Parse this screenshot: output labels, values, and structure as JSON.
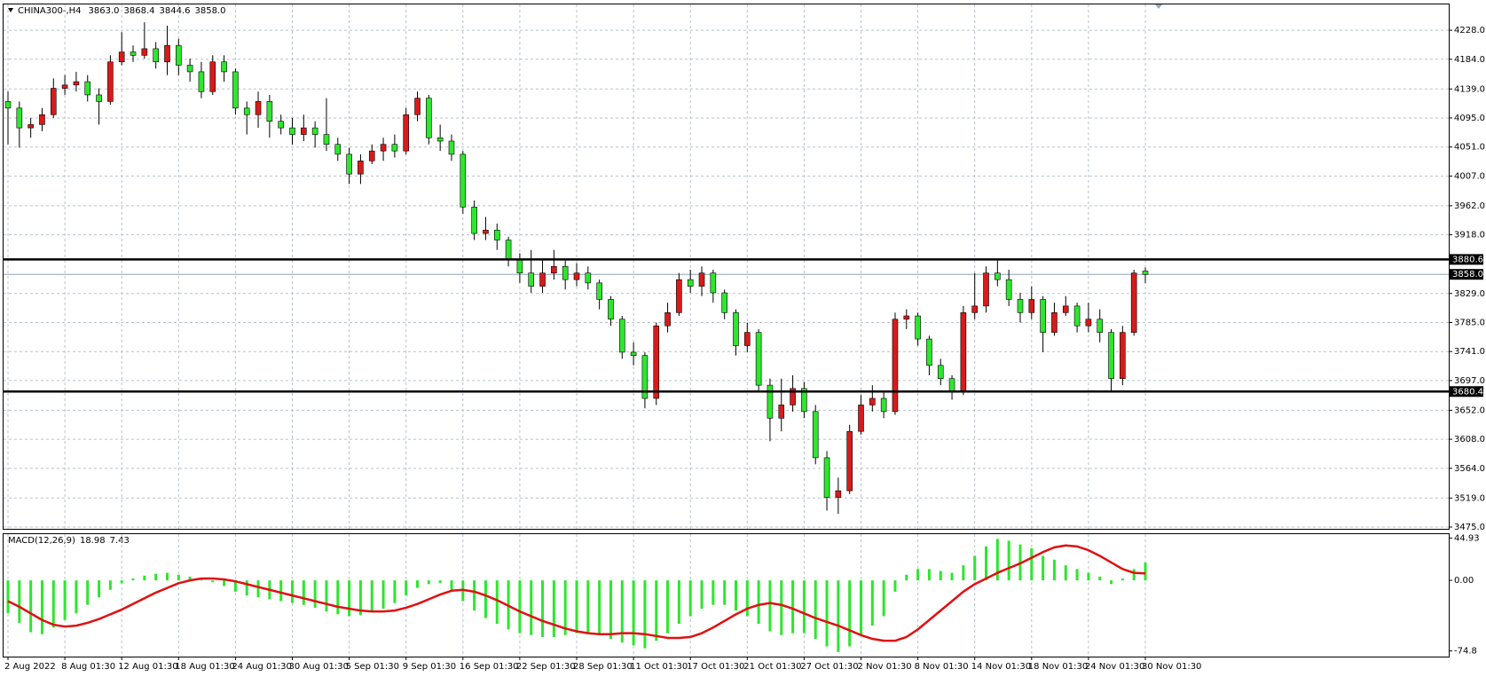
{
  "chart_data": [
    {
      "type": "candlestick",
      "title": "CHINA300-,H4",
      "header_values": [
        "3863.0",
        "3868.4",
        "3844.6",
        "3858.0"
      ],
      "open": [
        4120,
        4110,
        4080,
        4085,
        4100,
        4140,
        4145,
        4150,
        4130,
        4120,
        4180,
        4195,
        4190,
        4200,
        4180,
        4205,
        4175,
        4165,
        4135,
        4180,
        4165,
        4110,
        4100,
        4120,
        4090,
        4080,
        4070,
        4080,
        4070,
        4055,
        4040,
        4010,
        4030,
        4045,
        4055,
        4045,
        4100,
        4125,
        4065,
        4060,
        4040,
        3960,
        3920,
        3925,
        3910,
        3880,
        3860,
        3840,
        3860,
        3870,
        3850,
        3860,
        3845,
        3820,
        3790,
        3740,
        3735,
        3670,
        3780,
        3800,
        3850,
        3840,
        3860,
        3830,
        3800,
        3750,
        3770,
        3690,
        3640,
        3660,
        3685,
        3650,
        3580,
        3520,
        3530,
        3620,
        3660,
        3670,
        3650,
        3790,
        3795,
        3760,
        3720,
        3700,
        3680,
        3800,
        3810,
        3860,
        3850,
        3820,
        3800,
        3820,
        3770,
        3800,
        3810,
        3780,
        3790,
        3770,
        3700,
        3770,
        3863
      ],
      "high": [
        4135,
        4120,
        4095,
        4110,
        4155,
        4160,
        4165,
        4160,
        4140,
        4190,
        4225,
        4205,
        4240,
        4210,
        4235,
        4215,
        4185,
        4180,
        4190,
        4190,
        4170,
        4120,
        4135,
        4130,
        4100,
        4095,
        4100,
        4090,
        4125,
        4065,
        4050,
        4040,
        4055,
        4065,
        4070,
        4110,
        4135,
        4130,
        4085,
        4070,
        4045,
        3970,
        3945,
        3935,
        3915,
        3890,
        3895,
        3880,
        3895,
        3880,
        3875,
        3870,
        3850,
        3825,
        3795,
        3755,
        3740,
        3785,
        3815,
        3860,
        3865,
        3870,
        3865,
        3835,
        3805,
        3785,
        3775,
        3700,
        3700,
        3705,
        3695,
        3660,
        3590,
        3550,
        3630,
        3675,
        3690,
        3680,
        3800,
        3805,
        3800,
        3765,
        3730,
        3705,
        3810,
        3860,
        3870,
        3880,
        3865,
        3830,
        3840,
        3825,
        3815,
        3825,
        3815,
        3815,
        3805,
        3775,
        3780,
        3865,
        3868.4
      ],
      "low": [
        4055,
        4050,
        4065,
        4075,
        4095,
        4130,
        4135,
        4120,
        4085,
        4115,
        4175,
        4180,
        4185,
        4170,
        4160,
        4160,
        4150,
        4125,
        4130,
        4150,
        4100,
        4070,
        4080,
        4065,
        4070,
        4055,
        4060,
        4050,
        4045,
        4030,
        3995,
        3995,
        4025,
        4030,
        4035,
        4040,
        4090,
        4055,
        4045,
        4030,
        3950,
        3910,
        3910,
        3895,
        3870,
        3845,
        3830,
        3830,
        3850,
        3835,
        3840,
        3835,
        3805,
        3780,
        3730,
        3720,
        3655,
        3660,
        3770,
        3795,
        3830,
        3825,
        3815,
        3790,
        3735,
        3740,
        3680,
        3605,
        3620,
        3650,
        3640,
        3570,
        3500,
        3495,
        3525,
        3615,
        3650,
        3640,
        3645,
        3775,
        3750,
        3705,
        3690,
        3668,
        3675,
        3790,
        3800,
        3840,
        3810,
        3785,
        3790,
        3740,
        3765,
        3795,
        3770,
        3770,
        3755,
        3680,
        3690,
        3765,
        3844.6
      ],
      "close": [
        4110,
        4080,
        4085,
        4100,
        4140,
        4145,
        4150,
        4130,
        4120,
        4180,
        4195,
        4190,
        4200,
        4180,
        4205,
        4175,
        4165,
        4135,
        4180,
        4165,
        4110,
        4100,
        4120,
        4090,
        4080,
        4070,
        4080,
        4070,
        4055,
        4040,
        4010,
        4030,
        4045,
        4055,
        4045,
        4100,
        4125,
        4065,
        4060,
        4040,
        3960,
        3920,
        3925,
        3910,
        3880,
        3860,
        3840,
        3860,
        3870,
        3850,
        3860,
        3845,
        3820,
        3790,
        3740,
        3735,
        3670,
        3780,
        3800,
        3850,
        3840,
        3860,
        3830,
        3800,
        3750,
        3770,
        3690,
        3640,
        3660,
        3685,
        3650,
        3580,
        3520,
        3530,
        3620,
        3660,
        3670,
        3650,
        3790,
        3795,
        3760,
        3720,
        3700,
        3680,
        3800,
        3810,
        3860,
        3850,
        3820,
        3800,
        3820,
        3770,
        3800,
        3810,
        3780,
        3790,
        3770,
        3700,
        3770,
        3860,
        3858
      ],
      "up_color": "#d91a1a",
      "down_color": "#2ee62e",
      "ylim": [
        3472.3,
        4267.1
      ],
      "yticks": [
        {
          "value": 4228,
          "label": "4228.0"
        },
        {
          "value": 4184,
          "label": "4184.0"
        },
        {
          "value": 4139,
          "label": "4139.0"
        },
        {
          "value": 4095,
          "label": "4095.0"
        },
        {
          "value": 4051,
          "label": "4051.0"
        },
        {
          "value": 4007,
          "label": "4007.0"
        },
        {
          "value": 3962,
          "label": "3962.0"
        },
        {
          "value": 3918,
          "label": "3918.0"
        },
        {
          "value": 3829,
          "label": "3829.0"
        },
        {
          "value": 3785,
          "label": "3785.0"
        },
        {
          "value": 3741,
          "label": "3741.0"
        },
        {
          "value": 3697,
          "label": "3697.0"
        },
        {
          "value": 3652,
          "label": "3652.0"
        },
        {
          "value": 3608,
          "label": "3608.0"
        },
        {
          "value": 3564,
          "label": "3564.0"
        },
        {
          "value": 3519,
          "label": "3519.0"
        },
        {
          "value": 3475,
          "label": "3475.0"
        }
      ],
      "levels": [
        3880.6,
        3680.4
      ],
      "bid": {
        "value": 3858,
        "label": "3858.0"
      },
      "grid": true,
      "xticks": [
        {
          "value": 0,
          "label": "2 Aug 2022"
        },
        {
          "value": 5,
          "label": "8 Aug 01:30"
        },
        {
          "value": 10,
          "label": "12 Aug 01:30"
        },
        {
          "value": 15,
          "label": "18 Aug 01:30"
        },
        {
          "value": 20,
          "label": "24 Aug 01:30"
        },
        {
          "value": 25,
          "label": "30 Aug 01:30"
        },
        {
          "value": 30,
          "label": "5 Sep 01:30"
        },
        {
          "value": 35,
          "label": "9 Sep 01:30"
        },
        {
          "value": 40,
          "label": "16 Sep 01:30"
        },
        {
          "value": 45,
          "label": "22 Sep 01:30"
        },
        {
          "value": 50,
          "label": "28 Sep 01:30"
        },
        {
          "value": 55,
          "label": "11 Oct 01:30"
        },
        {
          "value": 60,
          "label": "17 Oct 01:30"
        },
        {
          "value": 65,
          "label": "21 Oct 01:30"
        },
        {
          "value": 70,
          "label": "27 Oct 01:30"
        },
        {
          "value": 75,
          "label": "2 Nov 01:30"
        },
        {
          "value": 80,
          "label": "8 Nov 01:30"
        },
        {
          "value": 85,
          "label": "14 Nov 01:30"
        },
        {
          "value": 90,
          "label": "18 Nov 01:30"
        },
        {
          "value": 95,
          "label": "24 Nov 01:30"
        },
        {
          "value": 100,
          "label": "30 Nov 01:30"
        }
      ]
    },
    {
      "type": "macd",
      "title": "MACD(12,26,9)",
      "histogram": {
        "color": "#2ee62e",
        "values": [
          -35,
          -45,
          -55,
          -57,
          -50,
          -42,
          -35,
          -26,
          -18,
          -10,
          -3,
          2,
          5,
          7,
          8,
          6,
          4,
          1,
          -2,
          -6,
          -12,
          -16,
          -18,
          -20,
          -22,
          -24,
          -26,
          -29,
          -33,
          -36,
          -38,
          -37,
          -34,
          -30,
          -24,
          -16,
          -8,
          -4,
          -3,
          -10,
          -22,
          -32,
          -40,
          -46,
          -52,
          -56,
          -58,
          -60,
          -60,
          -58,
          -56,
          -56,
          -58,
          -62,
          -66,
          -69,
          -72,
          -64,
          -56,
          -46,
          -38,
          -30,
          -26,
          -26,
          -32,
          -38,
          -46,
          -54,
          -58,
          -56,
          -56,
          -62,
          -70,
          -76,
          -70,
          -58,
          -48,
          -38,
          -12,
          6,
          12,
          12,
          10,
          8,
          16,
          26,
          36,
          44,
          42,
          38,
          34,
          26,
          22,
          16,
          12,
          8,
          4,
          -4,
          2,
          12,
          18.98
        ]
      },
      "signal": {
        "color": "#e01010",
        "values": [
          -22,
          -28,
          -35,
          -42,
          -47,
          -49,
          -48,
          -45,
          -41,
          -36,
          -31,
          -25,
          -19,
          -13,
          -8,
          -3,
          0,
          2,
          2,
          1,
          -1,
          -4,
          -7,
          -10,
          -13,
          -16,
          -19,
          -22,
          -25,
          -28,
          -30,
          -32,
          -33,
          -33,
          -32,
          -29,
          -25,
          -20,
          -15,
          -11,
          -10,
          -12,
          -16,
          -21,
          -27,
          -33,
          -38,
          -43,
          -47,
          -51,
          -54,
          -56,
          -57,
          -57,
          -56,
          -56,
          -57,
          -59,
          -61,
          -61,
          -60,
          -56,
          -50,
          -43,
          -36,
          -30,
          -26,
          -24,
          -26,
          -30,
          -35,
          -40,
          -44,
          -48,
          -53,
          -58,
          -62,
          -64,
          -64,
          -60,
          -52,
          -42,
          -32,
          -22,
          -12,
          -4,
          2,
          8,
          13,
          18,
          24,
          30,
          35,
          37,
          36,
          32,
          26,
          19,
          12,
          8,
          7.43
        ]
      },
      "ylim": [
        -80.8,
        49.0
      ],
      "yticks": [
        44.93,
        {
          "value": 0,
          "label": "0.00"
        },
        -74.8
      ]
    }
  ]
}
